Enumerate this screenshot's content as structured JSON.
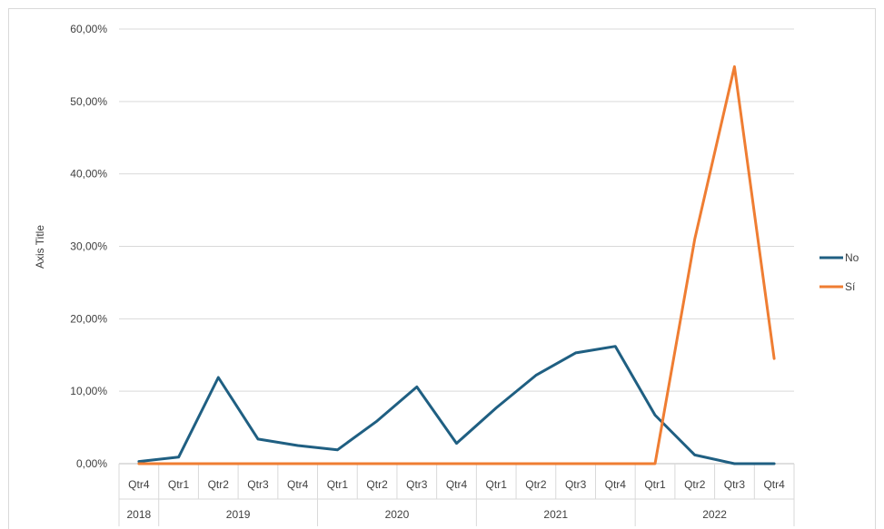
{
  "chart_data": {
    "type": "line",
    "title": "",
    "ylabel": "Axis Title",
    "xlabel": "",
    "ylim": [
      0,
      0.6
    ],
    "y_ticks": [
      0,
      0.1,
      0.2,
      0.3,
      0.4,
      0.5,
      0.6
    ],
    "y_tick_labels": [
      "0,00%",
      "10,00%",
      "20,00%",
      "30,00%",
      "40,00%",
      "50,00%",
      "60,00%"
    ],
    "grid": true,
    "legend_position": "right",
    "categories": [
      "Qtr4",
      "Qtr1",
      "Qtr2",
      "Qtr3",
      "Qtr4",
      "Qtr1",
      "Qtr2",
      "Qtr3",
      "Qtr4",
      "Qtr1",
      "Qtr2",
      "Qtr3",
      "Qtr4",
      "Qtr1",
      "Qtr2",
      "Qtr3",
      "Qtr4"
    ],
    "year_groups": [
      {
        "label": "2018",
        "count": 1
      },
      {
        "label": "2019",
        "count": 4
      },
      {
        "label": "2020",
        "count": 4
      },
      {
        "label": "2021",
        "count": 4
      },
      {
        "label": "2022",
        "count": 4
      }
    ],
    "series": [
      {
        "name": "No",
        "color": "#1f5f82",
        "values": [
          0.003,
          0.009,
          0.119,
          0.034,
          0.025,
          0.019,
          0.059,
          0.106,
          0.028,
          0.077,
          0.122,
          0.153,
          0.162,
          0.067,
          0.012,
          0.0,
          0.0
        ]
      },
      {
        "name": "Sí",
        "color": "#ef7d32",
        "values": [
          0,
          0,
          0,
          0,
          0,
          0,
          0,
          0,
          0,
          0,
          0,
          0,
          0,
          0,
          0.31,
          0.548,
          0.145
        ]
      }
    ]
  }
}
